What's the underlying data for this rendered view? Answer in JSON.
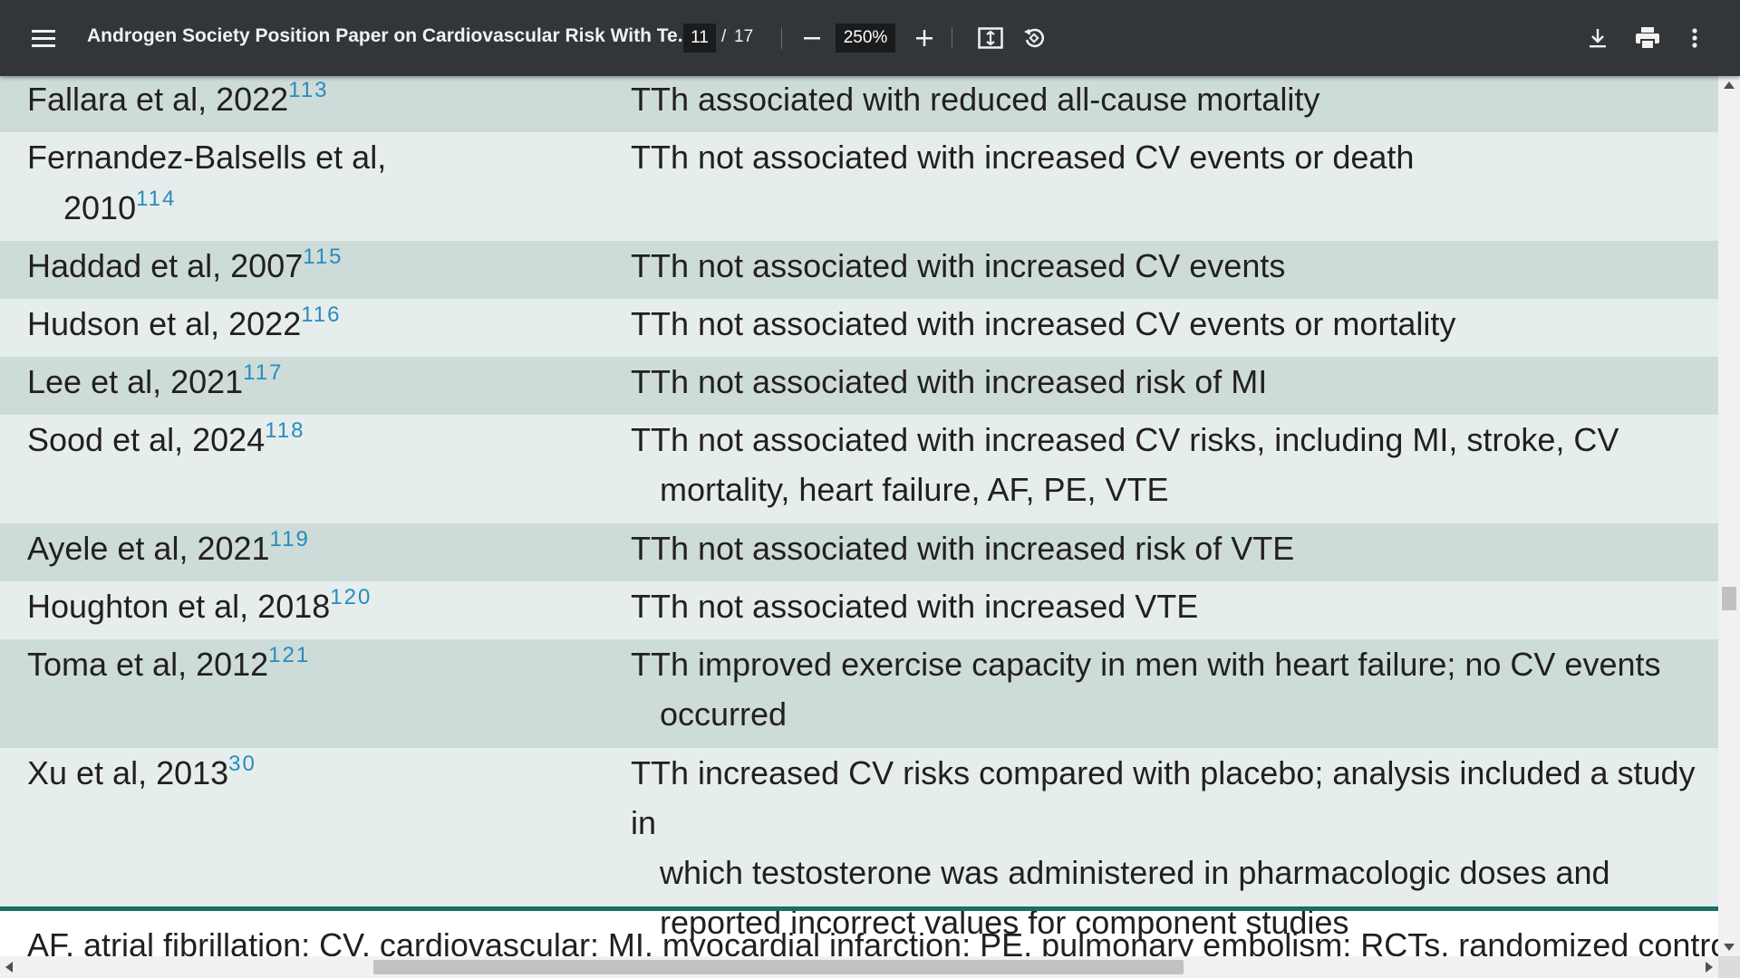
{
  "toolbar": {
    "title": "Androgen Society Position Paper on Cardiovascular Risk With Te...",
    "page_current": "11",
    "page_separator": "/",
    "page_total": "17",
    "zoom": "250%",
    "icons": {
      "menu": "hamburger-menu-icon",
      "zoom_out": "minus-icon",
      "zoom_in": "plus-icon",
      "fit": "fit-to-page-icon",
      "rotate": "rotate-counterclockwise-icon",
      "download": "download-icon",
      "print": "print-icon",
      "more": "more-vertical-icon"
    }
  },
  "table": {
    "colors": {
      "dark_row": "#cddcd8",
      "light_row": "#e5eeec",
      "ref": "#2a8bbd",
      "rule": "#1b6e63"
    },
    "rows": [
      {
        "study": [
          "Fallara et al, 2022"
        ],
        "ref": "113",
        "finding": [
          "TTh associated with reduced all-cause mortality"
        ]
      },
      {
        "study": [
          "Fernandez-Balsells et al,",
          "2010"
        ],
        "ref": "114",
        "finding": [
          "TTh not associated with increased CV events or death"
        ]
      },
      {
        "study": [
          "Haddad et al, 2007"
        ],
        "ref": "115",
        "finding": [
          "TTh not associated with increased CV events"
        ]
      },
      {
        "study": [
          "Hudson et al, 2022"
        ],
        "ref": "116",
        "finding": [
          "TTh not associated with increased CV events or mortality"
        ]
      },
      {
        "study": [
          "Lee et al, 2021"
        ],
        "ref": "117",
        "finding": [
          "TTh not associated with increased risk of MI"
        ]
      },
      {
        "study": [
          "Sood et al, 2024"
        ],
        "ref": "118",
        "finding": [
          "TTh not associated with increased CV risks, including MI, stroke, CV",
          "mortality, heart failure, AF, PE, VTE"
        ]
      },
      {
        "study": [
          "Ayele et al, 2021"
        ],
        "ref": "119",
        "finding": [
          "TTh not associated with increased risk of VTE"
        ]
      },
      {
        "study": [
          "Houghton et al, 2018"
        ],
        "ref": "120",
        "finding": [
          "TTh not associated with increased VTE"
        ]
      },
      {
        "study": [
          "Toma et al, 2012"
        ],
        "ref": "121",
        "finding": [
          "TTh improved exercise capacity in men with heart failure; no CV events",
          "occurred"
        ]
      },
      {
        "study": [
          "Xu et al, 2013"
        ],
        "ref": "30",
        "finding": [
          "TTh increased CV risks compared with placebo; analysis included a study in",
          "which testosterone was administered in pharmacologic doses and",
          "reported incorrect values for component studies"
        ]
      }
    ],
    "footnote": "AF, atrial fibrillation; CV, cardiovascular; MI, myocardial infarction; PE, pulmonary embolism; RCTs, randomized controlled trials; TTh"
  }
}
